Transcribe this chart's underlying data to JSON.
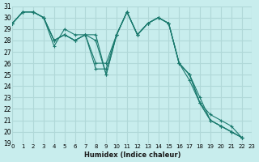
{
  "xlabel": "Humidex (Indice chaleur)",
  "bg_color": "#c8eded",
  "grid_color": "#b0d8d8",
  "line_color": "#1a7a6e",
  "series": [
    [
      29.5,
      30.5,
      30.5,
      30.0,
      28.0,
      28.5,
      28.0,
      28.5,
      28.5,
      25.0,
      28.5,
      30.5,
      28.5,
      29.5,
      30.0,
      29.5,
      26.0,
      25.0,
      23.0,
      21.0,
      20.5,
      20.0,
      19.5
    ],
    [
      29.5,
      30.5,
      30.5,
      30.0,
      28.0,
      28.5,
      28.0,
      28.5,
      25.5,
      25.5,
      28.5,
      30.5,
      28.5,
      29.5,
      30.0,
      29.5,
      26.0,
      25.0,
      22.5,
      21.0,
      20.5,
      20.0,
      19.5
    ],
    [
      29.5,
      30.5,
      30.5,
      30.0,
      27.5,
      29.0,
      28.5,
      28.5,
      26.0,
      26.0,
      28.5,
      30.5,
      28.5,
      29.5,
      30.0,
      29.5,
      26.0,
      25.0,
      22.5,
      21.5,
      21.0,
      20.5,
      19.5
    ],
    [
      29.5,
      30.5,
      30.5,
      30.0,
      28.0,
      28.5,
      28.0,
      28.5,
      28.0,
      25.0,
      28.5,
      30.5,
      28.5,
      29.5,
      30.0,
      29.5,
      26.0,
      24.5,
      22.5,
      21.0,
      20.5,
      20.0,
      19.5
    ]
  ],
  "ylim": [
    19,
    31
  ],
  "xlim": [
    0,
    23
  ],
  "yticks": [
    19,
    20,
    21,
    22,
    23,
    24,
    25,
    26,
    27,
    28,
    29,
    30,
    31
  ],
  "xticks": [
    0,
    1,
    2,
    3,
    4,
    5,
    6,
    7,
    8,
    9,
    10,
    11,
    12,
    13,
    14,
    15,
    16,
    17,
    18,
    19,
    20,
    21,
    22,
    23
  ],
  "xticklabels": [
    "0",
    "1",
    "2",
    "3",
    "4",
    "5",
    "6",
    "7",
    "8",
    "9",
    "10",
    "11",
    "12",
    "13",
    "14",
    "15",
    "16",
    "17",
    "18",
    "19",
    "20",
    "21",
    "22",
    "23"
  ]
}
